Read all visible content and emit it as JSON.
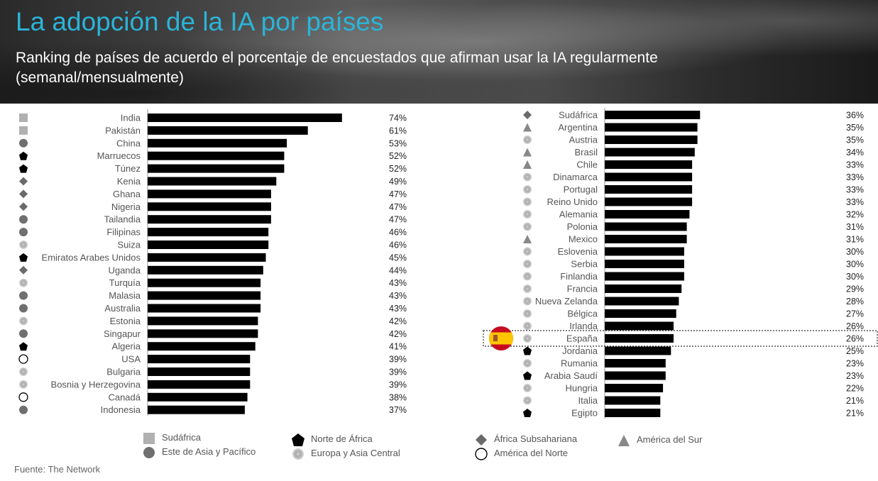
{
  "header": {
    "title": "La adopción de la IA por países",
    "subtitle": "Ranking de países de acuerdo el porcentaje de encuestados que afirman usar la IA regularmente (semanal/mensualmente)"
  },
  "legend": {
    "sudafrica": "Sudáfrica",
    "norte_africa": "Norte de África",
    "africa_sub": "África Subsahariana",
    "america_sur": "América del Sur",
    "asia_pacifico": "Este de Asia y Pacífico",
    "europa_asia": "Europa y Asia Central",
    "america_norte": "América del Norte"
  },
  "source": "Fuente: The Network",
  "colors": {
    "title": "#2bb4d8",
    "bar": "#000000",
    "square": "#b0b0b0",
    "circle": "#6f6f6f",
    "diamond": "#6a6a6a",
    "triangle": "#888888",
    "highlight_border": "#333333"
  },
  "chart_data": [
    {
      "type": "bar",
      "orientation": "horizontal",
      "value_unit": "%",
      "categories": [
        "India",
        "Pakistán",
        "China",
        "Marruecos",
        "Túnez",
        "Kenia",
        "Ghana",
        "Nigeria",
        "Tailandia",
        "Filipinas",
        "Suiza",
        "Emiratos Arabes Unidos",
        "Uganda",
        "Turquía",
        "Malasia",
        "Australia",
        "Estonia",
        "Singapur",
        "Algeria",
        "USA",
        "Bulgaria",
        "Bosnia y Herzegovina",
        "Canadá",
        "Indonesia"
      ],
      "values": [
        74,
        61,
        53,
        52,
        52,
        49,
        47,
        47,
        47,
        46,
        46,
        45,
        44,
        43,
        43,
        43,
        42,
        42,
        41,
        39,
        39,
        39,
        38,
        37
      ],
      "labels": [
        "74%",
        "61%",
        "53%",
        "52%",
        "52%",
        "49%",
        "47%",
        "47%",
        "47%",
        "46%",
        "46%",
        "45%",
        "44%",
        "43%",
        "43%",
        "43%",
        "42%",
        "42%",
        "41%",
        "39%",
        "39%",
        "39%",
        "38%",
        "37%"
      ],
      "regions": [
        "square",
        "square",
        "circle",
        "pentagon",
        "pentagon",
        "diamond",
        "diamond",
        "diamond",
        "circle",
        "circle",
        "sphere",
        "pentagon",
        "diamond",
        "sphere",
        "circle",
        "circle",
        "sphere",
        "circle",
        "pentagon",
        "hollow",
        "sphere",
        "sphere",
        "hollow",
        "circle"
      ]
    },
    {
      "type": "bar",
      "orientation": "horizontal",
      "value_unit": "%",
      "categories": [
        "Sudáfrica",
        "Argentina",
        "Austria",
        "Brasil",
        "Chile",
        "Dinamarca",
        "Portugal",
        "Reino Unido",
        "Alemania",
        "Polonia",
        "Mexico",
        "Eslovenia",
        "Serbia",
        "Finlandia",
        "Francia",
        "Nueva Zelanda",
        "Bélgica",
        "Irlanda",
        "España",
        "Jordania",
        "Rumania",
        "Arabia Saudí",
        "Hungria",
        "Italia",
        "Egipto"
      ],
      "values": [
        36,
        35,
        35,
        34,
        33,
        33,
        33,
        33,
        32,
        31,
        31,
        30,
        30,
        30,
        29,
        28,
        27,
        26,
        26,
        25,
        23,
        23,
        22,
        21,
        21
      ],
      "labels": [
        "36%",
        "35%",
        "35%",
        "34%",
        "33%",
        "33%",
        "33%",
        "33%",
        "32%",
        "31%",
        "31%",
        "30%",
        "30%",
        "30%",
        "29%",
        "28%",
        "27%",
        "26%",
        "26%",
        "25%",
        "23%",
        "23%",
        "22%",
        "21%",
        "21%"
      ],
      "regions": [
        "diamond",
        "triangle",
        "sphere",
        "triangle",
        "triangle",
        "sphere",
        "sphere",
        "sphere",
        "sphere",
        "sphere",
        "triangle",
        "sphere",
        "sphere",
        "sphere",
        "sphere",
        "sphere",
        "sphere",
        "sphere",
        "sphere",
        "pentagon",
        "sphere",
        "pentagon",
        "sphere",
        "sphere",
        "pentagon"
      ],
      "highlight": "España"
    }
  ]
}
